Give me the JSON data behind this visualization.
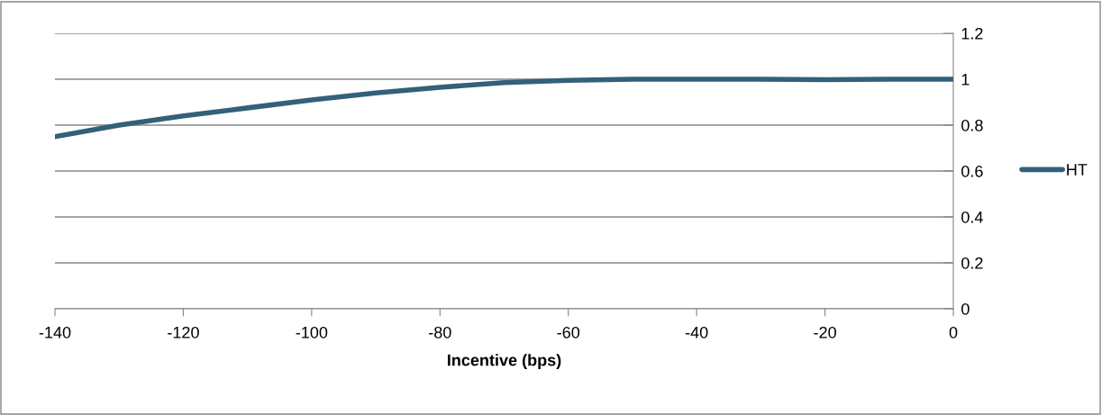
{
  "chart_data": {
    "type": "line",
    "xlabel": "Incentive (bps)",
    "x": [
      -140,
      -130,
      -120,
      -110,
      -100,
      -90,
      -80,
      -70,
      -60,
      -50,
      -40,
      -30,
      -20,
      -10,
      0
    ],
    "series": [
      {
        "name": "HT",
        "color": "#33607a",
        "values": [
          0.75,
          0.8,
          0.84,
          0.875,
          0.91,
          0.94,
          0.965,
          0.985,
          0.995,
          1.0,
          1.0,
          1.0,
          0.998,
          1.0,
          1.0
        ]
      }
    ],
    "xlim": [
      -140,
      0
    ],
    "xticks": [
      -140,
      -120,
      -100,
      -80,
      -60,
      -40,
      -20,
      0
    ],
    "ylim": [
      0,
      1.2
    ],
    "yticks": [
      0,
      0.2,
      0.4,
      0.6,
      0.8,
      1,
      1.2
    ],
    "grid": "y",
    "legend": "right",
    "marker": "none",
    "line_style": "solid"
  }
}
